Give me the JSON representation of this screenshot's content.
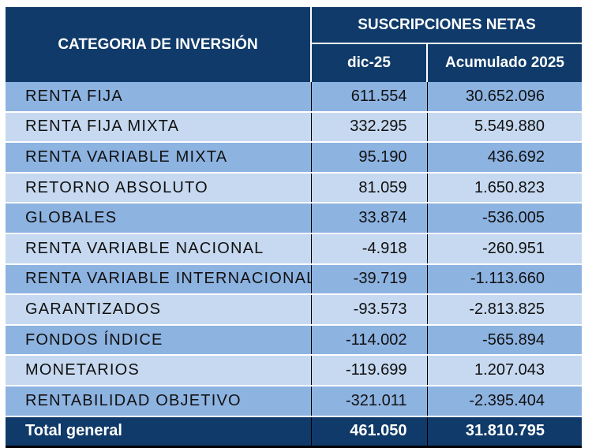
{
  "header": {
    "category": "CATEGORIA DE INVERSIÓN",
    "group": "SUSCRIPCIONES NETAS",
    "col_month": "dic-25",
    "col_ytd": "Acumulado 2025"
  },
  "rows": [
    {
      "name": "RENTA FIJA",
      "month": "611.554",
      "ytd": "30.652.096"
    },
    {
      "name": "RENTA FIJA MIXTA",
      "month": "332.295",
      "ytd": "5.549.880"
    },
    {
      "name": "RENTA VARIABLE MIXTA",
      "month": "95.190",
      "ytd": "436.692"
    },
    {
      "name": "RETORNO ABSOLUTO",
      "month": "81.059",
      "ytd": "1.650.823"
    },
    {
      "name": "GLOBALES",
      "month": "33.874",
      "ytd": "-536.005"
    },
    {
      "name": "RENTA VARIABLE NACIONAL",
      "month": "-4.918",
      "ytd": "-260.951"
    },
    {
      "name": "RENTA VARIABLE INTERNACIONAL",
      "month": "-39.719",
      "ytd": "-1.113.660"
    },
    {
      "name": "GARANTIZADOS",
      "month": "-93.573",
      "ytd": "-2.813.825"
    },
    {
      "name": "FONDOS ÍNDICE",
      "month": "-114.002",
      "ytd": "-565.894"
    },
    {
      "name": "MONETARIOS",
      "month": "-119.699",
      "ytd": "1.207.043"
    },
    {
      "name": "RENTABILIDAD OBJETIVO",
      "month": "-321.011",
      "ytd": "-2.395.404"
    }
  ],
  "total": {
    "name": "Total general",
    "month": "461.050",
    "ytd": "31.810.795"
  },
  "colors": {
    "header": "#0f3a69",
    "row_dark": "#8db3e1",
    "row_light": "#c6d9f0"
  }
}
